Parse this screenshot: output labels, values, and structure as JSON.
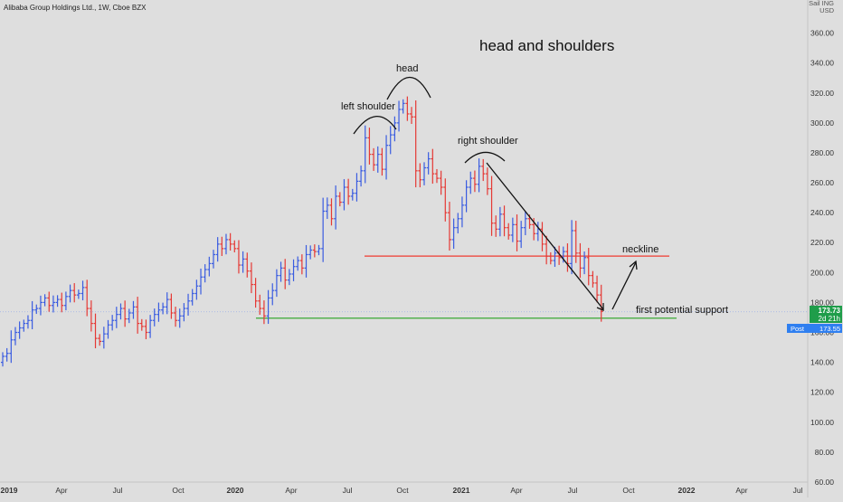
{
  "header": {
    "symbol_title": "Alibaba Group Holdings Ltd., 1W, Cboe BZX"
  },
  "chart_data": {
    "type": "ohlc",
    "title": "head and shoulders",
    "price_axis": {
      "scale_label": "Sail ING",
      "currency": "USD",
      "ticks": [
        60,
        80,
        100,
        120,
        140,
        160,
        180,
        200,
        220,
        240,
        260,
        280,
        300,
        320,
        340,
        360
      ],
      "tick_labels": [
        "60.00",
        "80.00",
        "100.00",
        "120.00",
        "140.00",
        "160.00",
        "180.00",
        "200.00",
        "220.00",
        "240.00",
        "260.00",
        "280.00",
        "300.00",
        "320.00",
        "340.00",
        "360.00"
      ],
      "range": [
        60,
        382
      ]
    },
    "time_axis": {
      "labels": [
        "2019",
        "Apr",
        "Jul",
        "Oct",
        "2020",
        "Apr",
        "Jul",
        "Oct",
        "2021",
        "Apr",
        "Jul",
        "Oct",
        "2022",
        "Apr",
        "Jul"
      ],
      "bold": [
        "2019",
        "2020",
        "2021",
        "2022"
      ]
    },
    "annotations": {
      "left_shoulder": "left shoulder",
      "head": "head",
      "right_shoulder": "right shoulder",
      "neckline": "neckline",
      "support": "first potential support"
    },
    "levels": {
      "neckline": 211,
      "support": 169.5,
      "last_price": 173.73
    },
    "price_label": {
      "value": "173.73",
      "countdown": "2d 21h"
    },
    "post_label": {
      "tag": "Post",
      "value": "173.55"
    },
    "colors": {
      "up": "#3a5ce0",
      "down": "#e53935",
      "neckline": "#ef3b30",
      "support": "#3aa835",
      "price_badge": "#1f9d4a",
      "post_badge": "#2f7ff0"
    },
    "weekly_closes": [
      {
        "w": 0,
        "c": 144
      },
      {
        "w": 1,
        "c": 146
      },
      {
        "w": 2,
        "c": 155
      },
      {
        "w": 3,
        "c": 160
      },
      {
        "w": 4,
        "c": 163
      },
      {
        "w": 5,
        "c": 166
      },
      {
        "w": 6,
        "c": 168
      },
      {
        "w": 7,
        "c": 175
      },
      {
        "w": 8,
        "c": 176
      },
      {
        "w": 9,
        "c": 180
      },
      {
        "w": 10,
        "c": 183
      },
      {
        "w": 11,
        "c": 178
      },
      {
        "w": 12,
        "c": 180
      },
      {
        "w": 13,
        "c": 182
      },
      {
        "w": 14,
        "c": 178
      },
      {
        "w": 15,
        "c": 184
      },
      {
        "w": 16,
        "c": 188
      },
      {
        "w": 17,
        "c": 185
      },
      {
        "w": 18,
        "c": 186
      },
      {
        "w": 19,
        "c": 190
      },
      {
        "w": 20,
        "c": 176
      },
      {
        "w": 21,
        "c": 166
      },
      {
        "w": 22,
        "c": 156
      },
      {
        "w": 23,
        "c": 154
      },
      {
        "w": 24,
        "c": 159
      },
      {
        "w": 25,
        "c": 165
      },
      {
        "w": 26,
        "c": 168
      },
      {
        "w": 27,
        "c": 172
      },
      {
        "w": 28,
        "c": 176
      },
      {
        "w": 29,
        "c": 169
      },
      {
        "w": 30,
        "c": 173
      },
      {
        "w": 31,
        "c": 177
      },
      {
        "w": 32,
        "c": 166
      },
      {
        "w": 33,
        "c": 164
      },
      {
        "w": 34,
        "c": 160
      },
      {
        "w": 35,
        "c": 168
      },
      {
        "w": 36,
        "c": 172
      },
      {
        "w": 37,
        "c": 175
      },
      {
        "w": 38,
        "c": 177
      },
      {
        "w": 39,
        "c": 182
      },
      {
        "w": 40,
        "c": 173
      },
      {
        "w": 41,
        "c": 168
      },
      {
        "w": 42,
        "c": 171
      },
      {
        "w": 43,
        "c": 176
      },
      {
        "w": 44,
        "c": 181
      },
      {
        "w": 45,
        "c": 186
      },
      {
        "w": 46,
        "c": 191
      },
      {
        "w": 47,
        "c": 197
      },
      {
        "w": 48,
        "c": 202
      },
      {
        "w": 49,
        "c": 206
      },
      {
        "w": 50,
        "c": 212
      },
      {
        "w": 51,
        "c": 219
      },
      {
        "w": 52,
        "c": 216
      },
      {
        "w": 53,
        "c": 222
      },
      {
        "w": 54,
        "c": 219
      },
      {
        "w": 55,
        "c": 216
      },
      {
        "w": 56,
        "c": 205
      },
      {
        "w": 57,
        "c": 209
      },
      {
        "w": 58,
        "c": 201
      },
      {
        "w": 59,
        "c": 192
      },
      {
        "w": 60,
        "c": 181
      },
      {
        "w": 61,
        "c": 176
      },
      {
        "w": 62,
        "c": 171
      },
      {
        "w": 63,
        "c": 183
      },
      {
        "w": 64,
        "c": 188
      },
      {
        "w": 65,
        "c": 198
      },
      {
        "w": 66,
        "c": 203
      },
      {
        "w": 67,
        "c": 195
      },
      {
        "w": 68,
        "c": 199
      },
      {
        "w": 69,
        "c": 204
      },
      {
        "w": 70,
        "c": 208
      },
      {
        "w": 71,
        "c": 203
      },
      {
        "w": 72,
        "c": 212
      },
      {
        "w": 73,
        "c": 215
      },
      {
        "w": 74,
        "c": 214
      },
      {
        "w": 75,
        "c": 216
      },
      {
        "w": 76,
        "c": 241
      },
      {
        "w": 77,
        "c": 245
      },
      {
        "w": 78,
        "c": 236
      },
      {
        "w": 79,
        "c": 251
      },
      {
        "w": 80,
        "c": 247
      },
      {
        "w": 81,
        "c": 257
      },
      {
        "w": 82,
        "c": 251
      },
      {
        "w": 83,
        "c": 253
      },
      {
        "w": 84,
        "c": 261
      },
      {
        "w": 85,
        "c": 268
      },
      {
        "w": 86,
        "c": 290
      },
      {
        "w": 87,
        "c": 279
      },
      {
        "w": 88,
        "c": 272
      },
      {
        "w": 89,
        "c": 279
      },
      {
        "w": 90,
        "c": 269
      },
      {
        "w": 91,
        "c": 285
      },
      {
        "w": 92,
        "c": 292
      },
      {
        "w": 93,
        "c": 300
      },
      {
        "w": 94,
        "c": 309
      },
      {
        "w": 95,
        "c": 313
      },
      {
        "w": 96,
        "c": 306
      },
      {
        "w": 97,
        "c": 304
      },
      {
        "w": 98,
        "c": 268
      },
      {
        "w": 99,
        "c": 262
      },
      {
        "w": 100,
        "c": 270
      },
      {
        "w": 101,
        "c": 276
      },
      {
        "w": 102,
        "c": 266
      },
      {
        "w": 103,
        "c": 263
      },
      {
        "w": 104,
        "c": 257
      },
      {
        "w": 105,
        "c": 240
      },
      {
        "w": 106,
        "c": 222
      },
      {
        "w": 107,
        "c": 230
      },
      {
        "w": 108,
        "c": 236
      },
      {
        "w": 109,
        "c": 245
      },
      {
        "w": 110,
        "c": 257
      },
      {
        "w": 111,
        "c": 263
      },
      {
        "w": 112,
        "c": 259
      },
      {
        "w": 113,
        "c": 271
      },
      {
        "w": 114,
        "c": 266
      },
      {
        "w": 115,
        "c": 256
      },
      {
        "w": 116,
        "c": 233
      },
      {
        "w": 117,
        "c": 229
      },
      {
        "w": 118,
        "c": 239
      },
      {
        "w": 119,
        "c": 230
      },
      {
        "w": 120,
        "c": 225
      },
      {
        "w": 121,
        "c": 232
      },
      {
        "w": 122,
        "c": 221
      },
      {
        "w": 123,
        "c": 230
      },
      {
        "w": 124,
        "c": 236
      },
      {
        "w": 125,
        "c": 232
      },
      {
        "w": 126,
        "c": 226
      },
      {
        "w": 127,
        "c": 229
      },
      {
        "w": 128,
        "c": 219
      },
      {
        "w": 129,
        "c": 211
      },
      {
        "w": 130,
        "c": 208
      },
      {
        "w": 131,
        "c": 213
      },
      {
        "w": 132,
        "c": 210
      },
      {
        "w": 133,
        "c": 214
      },
      {
        "w": 134,
        "c": 206
      },
      {
        "w": 135,
        "c": 228
      },
      {
        "w": 136,
        "c": 213
      },
      {
        "w": 137,
        "c": 203
      },
      {
        "w": 138,
        "c": 210
      },
      {
        "w": 139,
        "c": 198
      },
      {
        "w": 140,
        "c": 193
      },
      {
        "w": 141,
        "c": 185
      },
      {
        "w": 142,
        "c": 174
      }
    ]
  }
}
